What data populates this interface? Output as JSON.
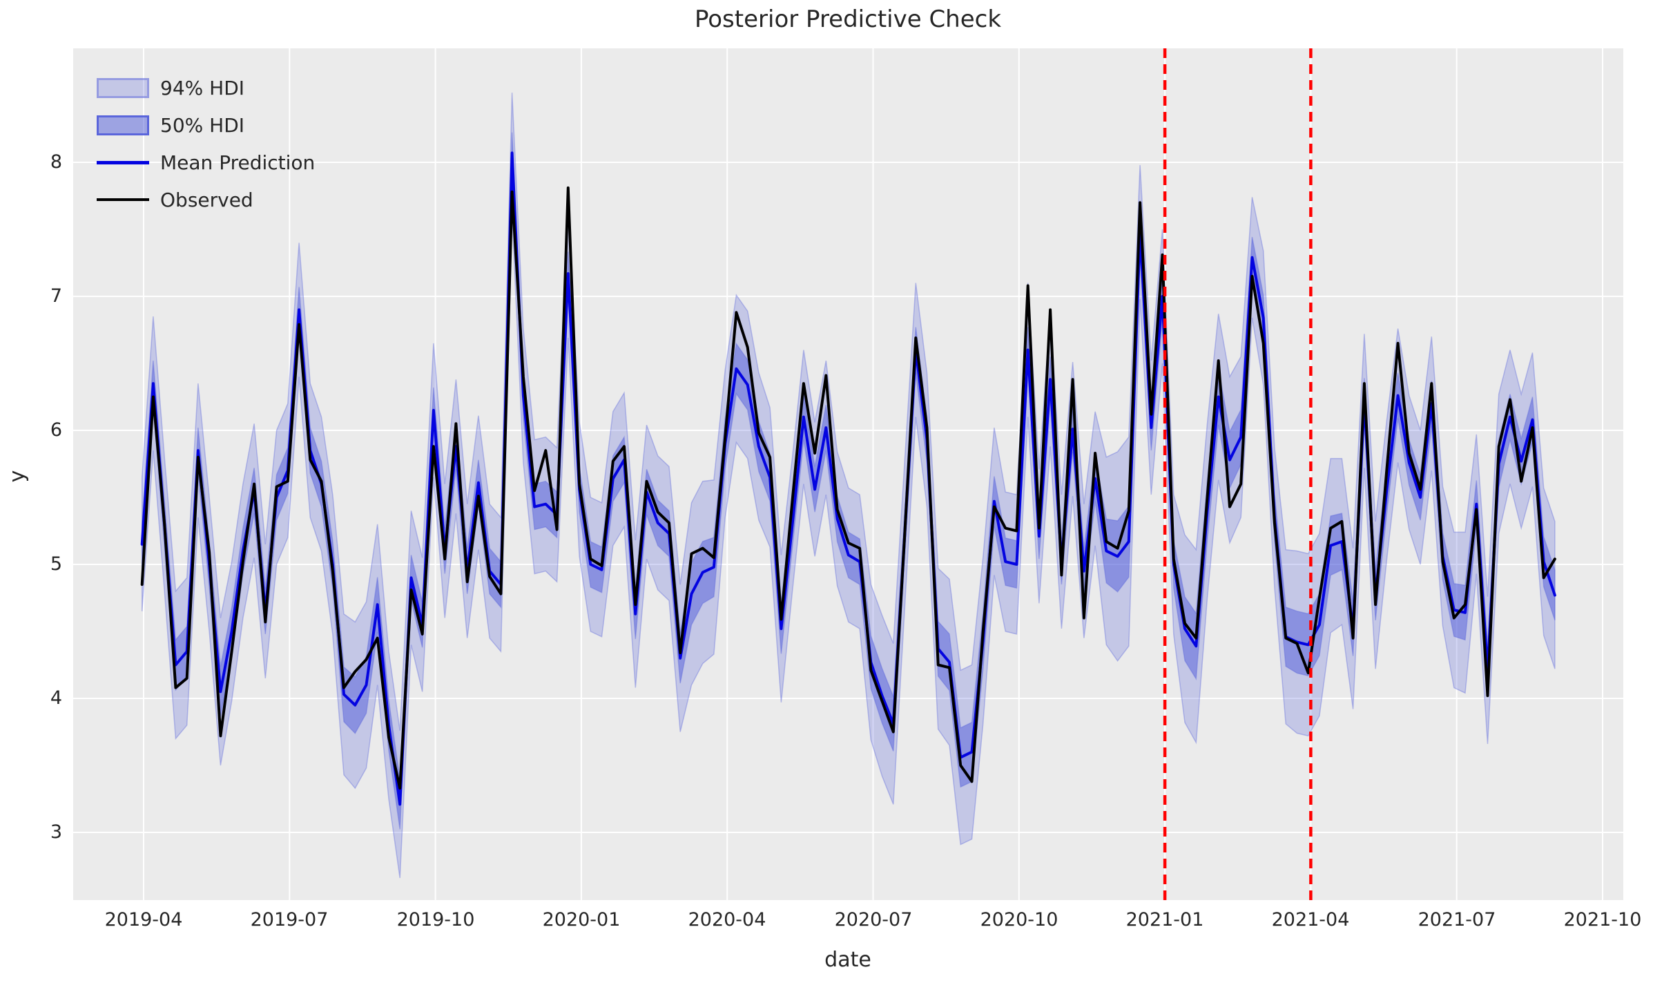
{
  "chart_data": {
    "type": "line",
    "title": "Posterior Predictive Check",
    "xlabel": "date",
    "ylabel": "y",
    "xticks": [
      "2019-04",
      "2019-07",
      "2019-10",
      "2020-01",
      "2020-04",
      "2020-07",
      "2020-10",
      "2021-01",
      "2021-04",
      "2021-07",
      "2021-10"
    ],
    "yticks": [
      "3",
      "4",
      "5",
      "6",
      "7",
      "8"
    ],
    "ylim": [
      2.5,
      8.85
    ],
    "grid": true,
    "legend_position": "upper-left",
    "x_start_date": "2019-03-31",
    "x_step_days": 7,
    "split_markers": [
      "2021-01",
      "2021-04"
    ],
    "legend_entries": [
      {
        "label": "94% HDI",
        "kind": "band-light"
      },
      {
        "label": "50% HDI",
        "kind": "band-dark"
      },
      {
        "label": "Mean Prediction",
        "kind": "line-blue"
      },
      {
        "label": "Observed",
        "kind": "line-black"
      }
    ],
    "colors": {
      "observed": "#000000",
      "mean": "#0404e0",
      "band_base": "#4f5bd9",
      "band94_alpha": 0.25,
      "band50_alpha": 0.5,
      "split_marker": "#ff0000",
      "plot_background": "#ebebeb",
      "grid": "#ffffff",
      "text": "#262626"
    },
    "hdi50_half_width_ratio": 0.34,
    "hdi94_half_width": [
      0.5,
      0.5,
      0.5,
      0.55,
      0.55,
      0.5,
      0.5,
      0.55,
      0.52,
      0.5,
      0.5,
      0.5,
      0.5,
      0.5,
      0.5,
      0.5,
      0.5,
      0.52,
      0.6,
      0.62,
      0.62,
      0.6,
      0.55,
      0.55,
      0.5,
      0.5,
      0.5,
      0.5,
      0.5,
      0.5,
      0.5,
      0.5,
      0.5,
      0.45,
      0.5,
      0.5,
      0.5,
      0.5,
      0.48,
      0.5,
      0.5,
      0.5,
      0.5,
      0.5,
      0.55,
      0.5,
      0.5,
      0.5,
      0.55,
      0.68,
      0.68,
      0.65,
      0.55,
      0.55,
      0.55,
      0.55,
      0.52,
      0.55,
      0.5,
      0.5,
      0.5,
      0.5,
      0.5,
      0.5,
      0.5,
      0.58,
      0.6,
      0.6,
      0.55,
      0.5,
      0.5,
      0.6,
      0.62,
      0.65,
      0.65,
      0.62,
      0.55,
      0.52,
      0.52,
      0.5,
      0.5,
      0.5,
      0.5,
      0.5,
      0.5,
      0.5,
      0.7,
      0.78,
      0.78,
      0.5,
      0.5,
      0.5,
      0.52,
      0.7,
      0.72,
      0.65,
      0.62,
      0.62,
      0.6,
      0.45,
      0.5,
      0.52,
      0.65,
      0.68,
      0.68,
      0.68,
      0.65,
      0.62,
      0.6,
      0.5,
      0.55,
      0.52,
      0.5,
      0.5,
      0.5,
      0.5,
      0.52,
      0.58,
      0.6,
      0.52,
      0.55,
      0.52,
      0.5,
      0.5,
      0.5,
      0.55,
      0.55
    ],
    "series": [
      {
        "name": "Observed",
        "values": [
          4.85,
          6.25,
          5.3,
          4.08,
          4.15,
          5.8,
          5.09,
          3.72,
          4.35,
          5.02,
          5.6,
          4.57,
          5.58,
          5.62,
          6.79,
          5.78,
          5.62,
          4.95,
          4.08,
          4.2,
          4.29,
          4.45,
          3.71,
          3.33,
          4.81,
          4.48,
          5.88,
          5.04,
          6.05,
          4.87,
          5.51,
          4.91,
          4.78,
          7.78,
          6.4,
          5.55,
          5.85,
          5.26,
          7.81,
          5.6,
          5.04,
          4.99,
          5.77,
          5.88,
          4.7,
          5.62,
          5.39,
          5.31,
          4.34,
          5.08,
          5.12,
          5.05,
          5.95,
          6.88,
          6.62,
          5.98,
          5.8,
          4.59,
          5.48,
          6.35,
          5.83,
          6.41,
          5.41,
          5.16,
          5.12,
          4.21,
          3.98,
          3.75,
          5.2,
          6.69,
          6.02,
          4.25,
          4.23,
          3.5,
          3.38,
          4.5,
          5.43,
          5.27,
          5.25,
          7.08,
          5.27,
          6.9,
          4.92,
          6.38,
          4.6,
          5.83,
          5.17,
          5.12,
          5.4,
          7.7,
          6.12,
          7.31,
          5.04,
          4.56,
          4.45,
          5.5,
          6.52,
          5.43,
          5.6,
          7.15,
          6.65,
          5.31,
          4.45,
          4.41,
          4.19,
          4.75,
          5.27,
          5.32,
          4.45,
          6.35,
          4.7,
          5.7,
          6.65,
          5.83,
          5.56,
          6.35,
          5.02,
          4.6,
          4.7,
          5.41,
          4.02,
          5.88,
          6.23,
          5.62,
          6.02,
          4.9,
          5.04
        ]
      },
      {
        "name": "Mean Prediction",
        "values": [
          5.15,
          6.35,
          5.3,
          4.25,
          4.35,
          5.85,
          5.0,
          4.05,
          4.5,
          5.1,
          5.55,
          4.65,
          5.5,
          5.7,
          6.9,
          5.85,
          5.6,
          5.0,
          4.03,
          3.95,
          4.1,
          4.7,
          3.8,
          3.21,
          4.9,
          4.55,
          6.15,
          5.1,
          5.88,
          4.95,
          5.61,
          4.95,
          4.85,
          8.07,
          6.26,
          5.43,
          5.45,
          5.37,
          7.17,
          5.56,
          5.0,
          4.96,
          5.64,
          5.78,
          4.63,
          5.54,
          5.31,
          5.23,
          4.3,
          4.78,
          4.94,
          4.98,
          5.9,
          6.46,
          6.34,
          5.88,
          5.65,
          4.52,
          5.3,
          6.1,
          5.56,
          6.02,
          5.34,
          5.07,
          5.02,
          4.27,
          4.02,
          3.81,
          5.2,
          6.6,
          5.93,
          4.37,
          4.27,
          3.56,
          3.6,
          4.43,
          5.47,
          5.02,
          5.0,
          6.6,
          5.21,
          6.38,
          5.02,
          6.01,
          4.95,
          5.64,
          5.1,
          5.06,
          5.17,
          7.48,
          6.02,
          7.0,
          5.0,
          4.52,
          4.39,
          5.4,
          6.25,
          5.78,
          5.95,
          7.29,
          6.84,
          5.35,
          4.46,
          4.42,
          4.4,
          4.55,
          5.14,
          5.17,
          4.52,
          6.22,
          4.77,
          5.55,
          6.26,
          5.76,
          5.5,
          6.2,
          5.06,
          4.66,
          4.64,
          5.45,
          4.21,
          5.75,
          6.1,
          5.77,
          6.08,
          5.02,
          4.77
        ]
      }
    ]
  }
}
